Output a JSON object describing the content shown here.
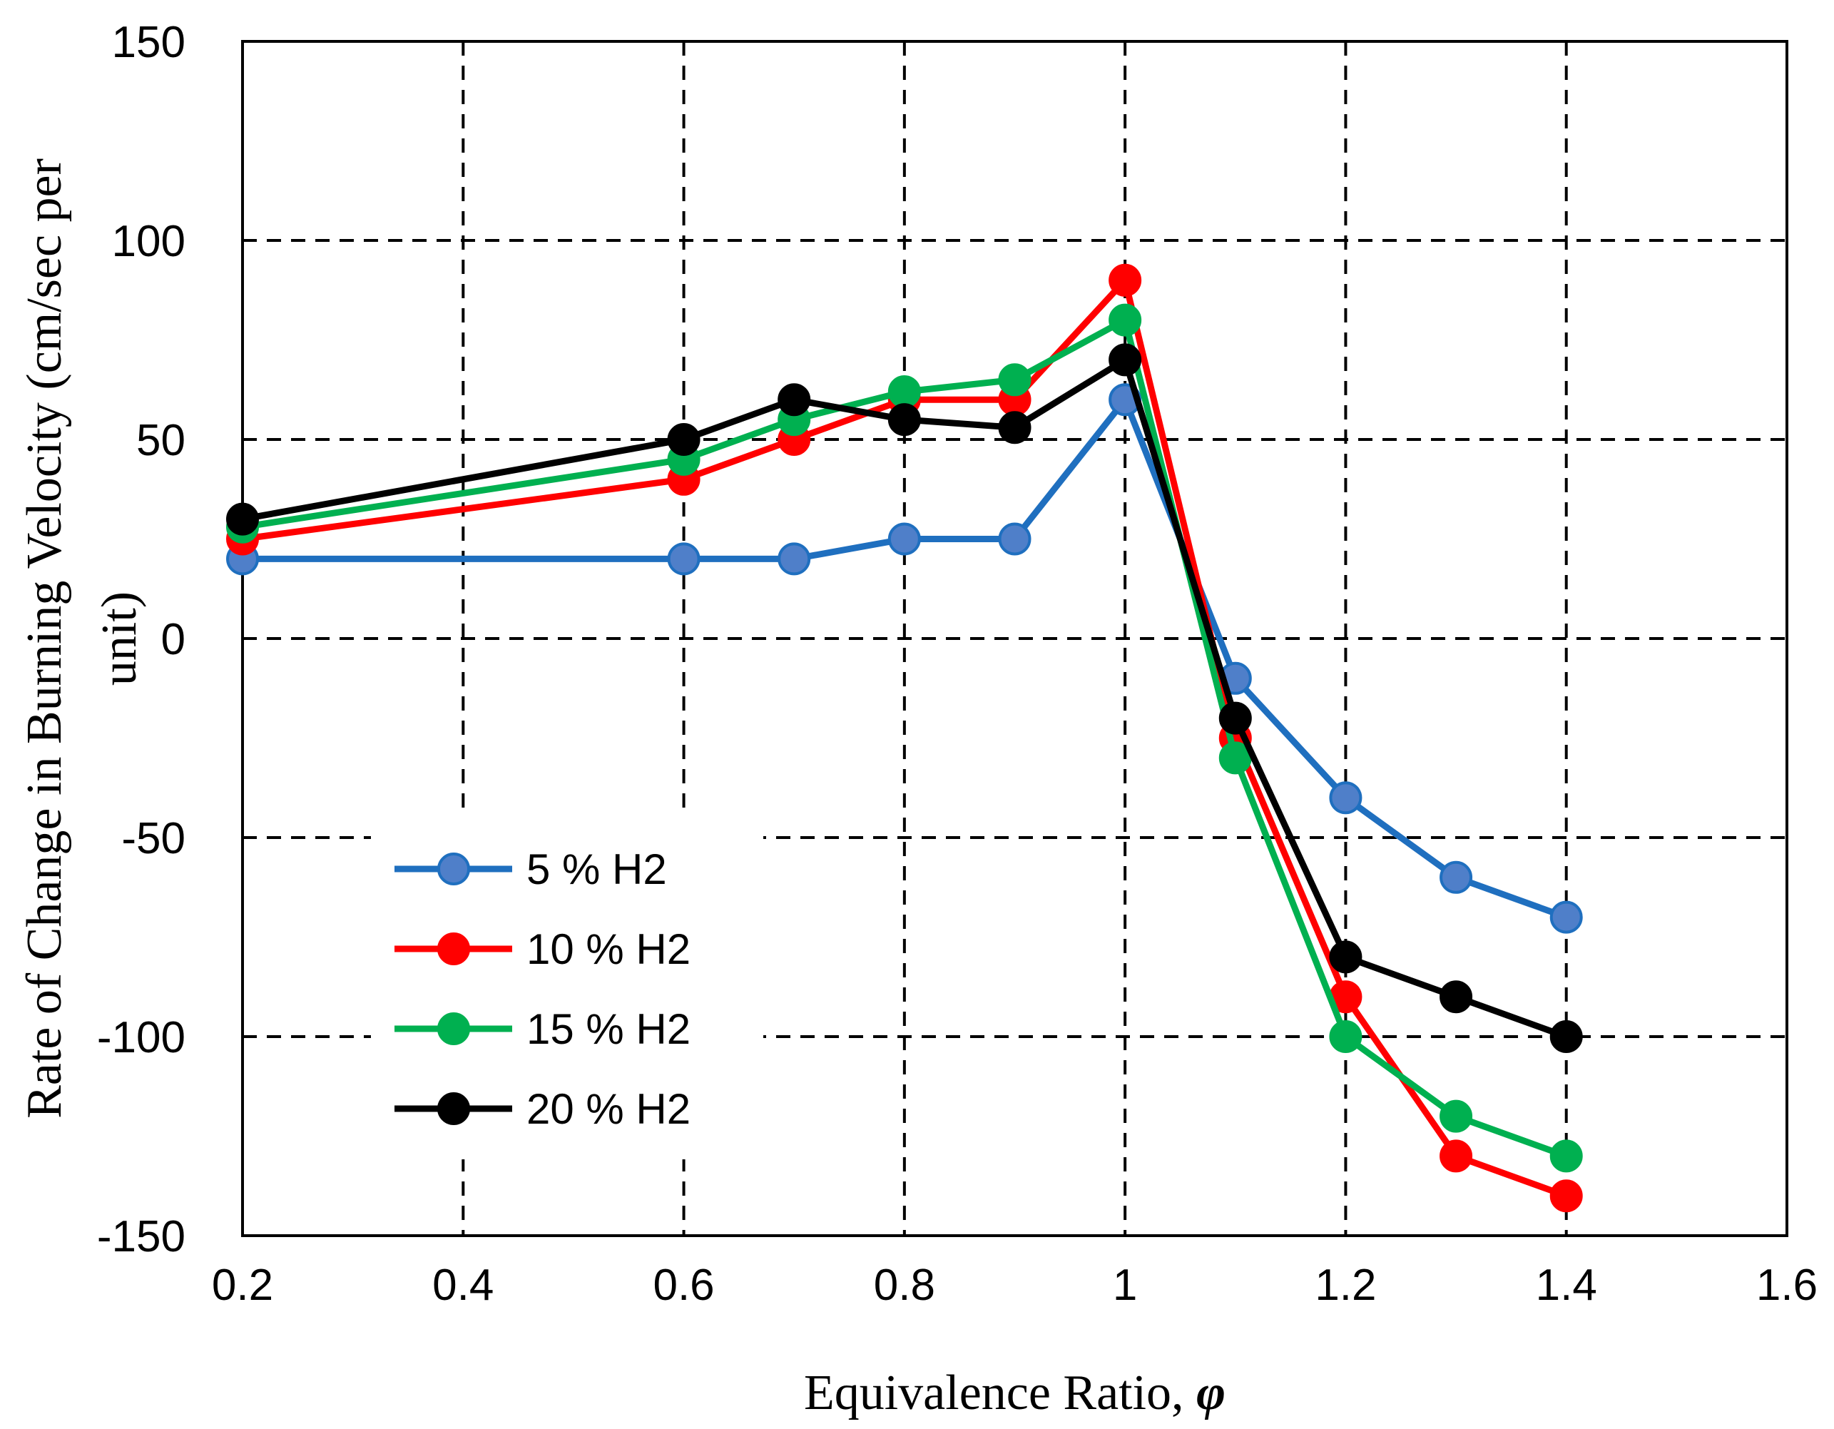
{
  "chart_data": {
    "type": "line",
    "title": "",
    "xlabel": "Equivalence Ratio, ",
    "xlabel_symbol": "φ",
    "ylabel_lines": [
      "Rate of Change in Burning Velocity (cm/sec per",
      "unit)"
    ],
    "xlim": [
      0.2,
      1.6
    ],
    "ylim": [
      -150,
      150
    ],
    "x_ticks": [
      0.2,
      0.4,
      0.6,
      0.8,
      1,
      1.2,
      1.4,
      1.6
    ],
    "x_tick_labels": [
      "0.2",
      "0.4",
      "0.6",
      "0.8",
      "1",
      "1.2",
      "1.4",
      "1.6"
    ],
    "y_ticks": [
      150,
      100,
      50,
      0,
      -50,
      -100,
      -150
    ],
    "y_tick_labels": [
      "150",
      "100",
      "50",
      "0",
      "-50",
      "-100",
      "-150"
    ],
    "grid": true,
    "legend_position": "lower-left",
    "x": [
      0.2,
      0.6,
      0.7,
      0.8,
      0.9,
      1.0,
      1.1,
      1.2,
      1.3,
      1.4
    ],
    "series": [
      {
        "name": "5 % H2",
        "color": "#1f6fbf",
        "marker_color": "#4f7fc9",
        "values": [
          20,
          20,
          20,
          25,
          25,
          60,
          -10,
          -40,
          -60,
          -70
        ]
      },
      {
        "name": "10 % H2",
        "color": "#ff0000",
        "marker_color": "#ff0000",
        "values": [
          25,
          40,
          50,
          60,
          60,
          90,
          -25,
          -90,
          -130,
          -140
        ]
      },
      {
        "name": "15 % H2",
        "color": "#00b050",
        "marker_color": "#00b050",
        "values": [
          28,
          45,
          55,
          62,
          65,
          80,
          -30,
          -100,
          -120,
          -130
        ]
      },
      {
        "name": "20 % H2",
        "color": "#000000",
        "marker_color": "#000000",
        "values": [
          30,
          50,
          60,
          55,
          53,
          70,
          -20,
          -80,
          -90,
          -100
        ]
      }
    ]
  }
}
